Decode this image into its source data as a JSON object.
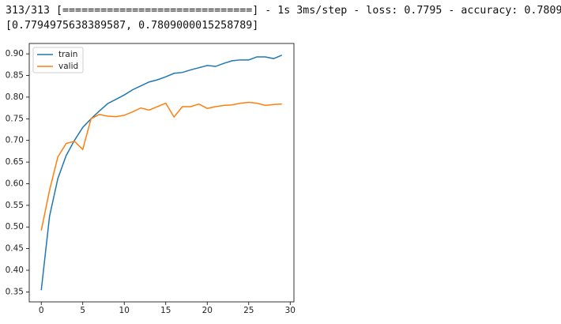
{
  "output_lines": [
    "313/313 [==============================] - 1s 3ms/step - loss: 0.7795 - accuracy: 0.7809",
    "[0.7794975638389587, 0.7809000015258789]"
  ],
  "chart_data": {
    "type": "line",
    "x": [
      0,
      1,
      2,
      3,
      4,
      5,
      6,
      7,
      8,
      9,
      10,
      11,
      12,
      13,
      14,
      15,
      16,
      17,
      18,
      19,
      20,
      21,
      22,
      23,
      24,
      25,
      26,
      27,
      28,
      29
    ],
    "series": [
      {
        "name": "train",
        "color": "#1f77b4",
        "values": [
          0.354,
          0.525,
          0.612,
          0.665,
          0.7,
          0.73,
          0.75,
          0.768,
          0.785,
          0.795,
          0.805,
          0.817,
          0.826,
          0.835,
          0.84,
          0.847,
          0.855,
          0.857,
          0.863,
          0.868,
          0.873,
          0.871,
          0.878,
          0.884,
          0.886,
          0.886,
          0.893,
          0.893,
          0.889,
          0.897
        ]
      },
      {
        "name": "valid",
        "color": "#ff7f0e",
        "values": [
          0.492,
          0.585,
          0.662,
          0.693,
          0.698,
          0.679,
          0.75,
          0.76,
          0.756,
          0.755,
          0.758,
          0.766,
          0.775,
          0.77,
          0.778,
          0.786,
          0.754,
          0.778,
          0.778,
          0.784,
          0.774,
          0.778,
          0.781,
          0.782,
          0.786,
          0.788,
          0.786,
          0.781,
          0.783,
          0.784
        ]
      }
    ],
    "xlim": [
      -1.45,
      30.45
    ],
    "xticks": [
      0,
      5,
      10,
      15,
      20,
      25,
      30
    ],
    "ylim": [
      0.327,
      0.924
    ],
    "yticks": [
      0.35,
      {
        "value": 0.4,
        "label": "0.40"
      },
      0.45,
      {
        "value": 0.5,
        "label": "0.50"
      },
      0.55,
      {
        "value": 0.6,
        "label": "0.60"
      },
      0.65,
      {
        "value": 0.7,
        "label": "0.70"
      },
      0.75,
      {
        "value": 0.8,
        "label": "0.80"
      },
      0.85,
      {
        "value": 0.9,
        "label": "0.90"
      }
    ],
    "legend": "upper left"
  }
}
